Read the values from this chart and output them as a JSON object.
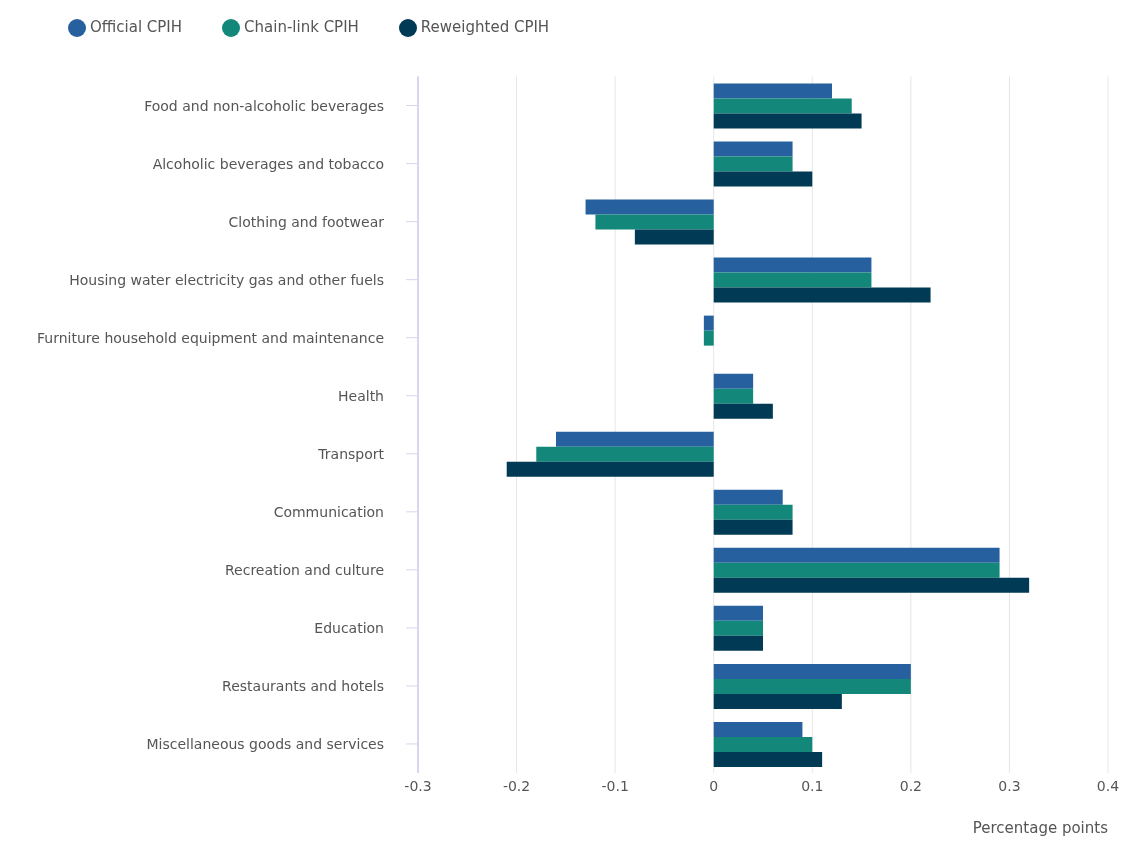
{
  "chart_data": {
    "type": "bar",
    "orientation": "horizontal",
    "xlabel": "Percentage points",
    "categories": [
      "Food and non-alcoholic beverages",
      "Alcoholic beverages and tobacco",
      "Clothing and footwear",
      "Housing water electricity gas and other fuels",
      "Furniture household equipment and maintenance",
      "Health",
      "Transport",
      "Communication",
      "Recreation and culture",
      "Education",
      "Restaurants and hotels",
      "Miscellaneous goods and services"
    ],
    "series": [
      {
        "name": "Official CPIH",
        "color": "#27609f",
        "values": [
          0.12,
          0.08,
          -0.13,
          0.16,
          -0.01,
          0.04,
          -0.16,
          0.07,
          0.29,
          0.05,
          0.2,
          0.09
        ]
      },
      {
        "name": "Chain-link CPIH",
        "color": "#12877a",
        "values": [
          0.14,
          0.08,
          -0.12,
          0.16,
          -0.01,
          0.04,
          -0.18,
          0.08,
          0.29,
          0.05,
          0.2,
          0.1
        ]
      },
      {
        "name": "Reweighted CPIH",
        "color": "#003a54",
        "values": [
          0.15,
          0.1,
          -0.08,
          0.22,
          0,
          0.06,
          -0.21,
          0.08,
          0.32,
          0.05,
          0.13,
          0.11
        ]
      }
    ],
    "xlim": [
      -0.3,
      0.4
    ],
    "xticks": [
      -0.3,
      -0.2,
      -0.1,
      0,
      0.1,
      0.2,
      0.3,
      0.4
    ],
    "grid": "x",
    "legend": "top left"
  }
}
